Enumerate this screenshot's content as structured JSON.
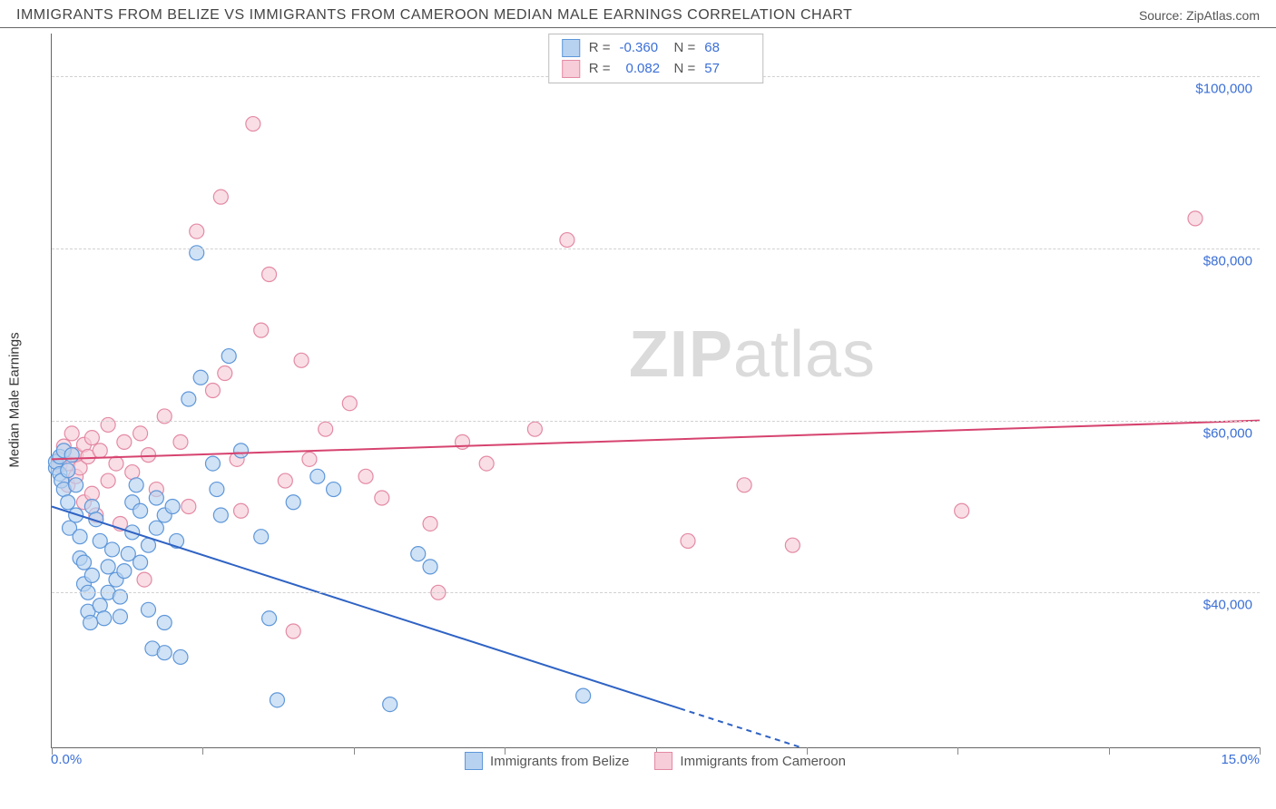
{
  "header": {
    "title": "IMMIGRANTS FROM BELIZE VS IMMIGRANTS FROM CAMEROON MEDIAN MALE EARNINGS CORRELATION CHART",
    "source_prefix": "Source: ",
    "source_name": "ZipAtlas.com"
  },
  "chart": {
    "type": "scatter",
    "y_axis_label": "Median Male Earnings",
    "x_min_label": "0.0%",
    "x_max_label": "15.0%",
    "xlim": [
      0,
      15
    ],
    "ylim": [
      22000,
      105000
    ],
    "y_gridlines": [
      40000,
      60000,
      80000,
      100000
    ],
    "y_tick_labels": [
      "$40,000",
      "$60,000",
      "$80,000",
      "$100,000"
    ],
    "x_ticks_pct": [
      0,
      12.5,
      25,
      37.5,
      50,
      62.5,
      75,
      87.5,
      100
    ],
    "grid_color": "#d0d0d0",
    "axis_color": "#666666",
    "background_color": "#ffffff",
    "tick_label_color": "#3b6fd6",
    "marker_radius": 8,
    "marker_stroke_width": 1.2,
    "line_width": 2,
    "watermark_text_bold": "ZIP",
    "watermark_text_rest": "atlas",
    "watermark_color": "#bfbfbf"
  },
  "series": {
    "belize": {
      "label": "Immigrants from Belize",
      "fill": "#b7d2f0",
      "stroke": "#5e97da",
      "line_color": "#2f63c4",
      "R_label": "R =",
      "R_value": "-0.360",
      "N_label": "N =",
      "N_value": "68",
      "regression": {
        "x1": 0,
        "y1": 50000,
        "x2": 9.3,
        "y2": 22000,
        "dash_after_x": 7.8
      },
      "points": [
        [
          0.05,
          54500
        ],
        [
          0.05,
          55200
        ],
        [
          0.1,
          53800
        ],
        [
          0.1,
          55800
        ],
        [
          0.12,
          53000
        ],
        [
          0.15,
          56500
        ],
        [
          0.15,
          52000
        ],
        [
          0.2,
          54200
        ],
        [
          0.2,
          50500
        ],
        [
          0.22,
          47500
        ],
        [
          0.25,
          56000
        ],
        [
          0.3,
          52500
        ],
        [
          0.3,
          49000
        ],
        [
          0.35,
          46500
        ],
        [
          0.35,
          44000
        ],
        [
          0.4,
          43500
        ],
        [
          0.4,
          41000
        ],
        [
          0.45,
          40000
        ],
        [
          0.45,
          37800
        ],
        [
          0.48,
          36500
        ],
        [
          0.5,
          42000
        ],
        [
          0.5,
          50000
        ],
        [
          0.55,
          48500
        ],
        [
          0.6,
          46000
        ],
        [
          0.6,
          38500
        ],
        [
          0.65,
          37000
        ],
        [
          0.7,
          43000
        ],
        [
          0.7,
          40000
        ],
        [
          0.75,
          45000
        ],
        [
          0.8,
          41500
        ],
        [
          0.85,
          39500
        ],
        [
          0.85,
          37200
        ],
        [
          0.9,
          42500
        ],
        [
          0.95,
          44500
        ],
        [
          1.0,
          47000
        ],
        [
          1.0,
          50500
        ],
        [
          1.05,
          52500
        ],
        [
          1.1,
          49500
        ],
        [
          1.1,
          43500
        ],
        [
          1.2,
          45500
        ],
        [
          1.2,
          38000
        ],
        [
          1.25,
          33500
        ],
        [
          1.3,
          51000
        ],
        [
          1.3,
          47500
        ],
        [
          1.4,
          49000
        ],
        [
          1.4,
          36500
        ],
        [
          1.4,
          33000
        ],
        [
          1.5,
          50000
        ],
        [
          1.55,
          46000
        ],
        [
          1.6,
          32500
        ],
        [
          1.7,
          62500
        ],
        [
          1.8,
          79500
        ],
        [
          1.85,
          65000
        ],
        [
          2.0,
          55000
        ],
        [
          2.05,
          52000
        ],
        [
          2.1,
          49000
        ],
        [
          2.2,
          67500
        ],
        [
          2.35,
          56500
        ],
        [
          2.6,
          46500
        ],
        [
          2.7,
          37000
        ],
        [
          2.8,
          27500
        ],
        [
          3.0,
          50500
        ],
        [
          3.3,
          53500
        ],
        [
          3.5,
          52000
        ],
        [
          4.2,
          27000
        ],
        [
          4.55,
          44500
        ],
        [
          4.7,
          43000
        ],
        [
          6.6,
          28000
        ]
      ]
    },
    "cameroon": {
      "label": "Immigrants from Cameroon",
      "fill": "#f6cdd8",
      "stroke": "#e48aa4",
      "line_color": "#d6436f",
      "R_label": "R =",
      "R_value": "0.082",
      "N_label": "N =",
      "N_value": "57",
      "regression": {
        "x1": 0,
        "y1": 55500,
        "x2": 15,
        "y2": 60000
      },
      "points": [
        [
          0.1,
          55500
        ],
        [
          0.1,
          54800
        ],
        [
          0.15,
          57000
        ],
        [
          0.2,
          55000
        ],
        [
          0.2,
          52500
        ],
        [
          0.25,
          58500
        ],
        [
          0.3,
          56000
        ],
        [
          0.3,
          53500
        ],
        [
          0.35,
          54500
        ],
        [
          0.4,
          57200
        ],
        [
          0.4,
          50500
        ],
        [
          0.45,
          55800
        ],
        [
          0.5,
          58000
        ],
        [
          0.5,
          51500
        ],
        [
          0.55,
          49000
        ],
        [
          0.6,
          56500
        ],
        [
          0.7,
          59500
        ],
        [
          0.7,
          53000
        ],
        [
          0.8,
          55000
        ],
        [
          0.85,
          48000
        ],
        [
          0.9,
          57500
        ],
        [
          1.0,
          54000
        ],
        [
          1.1,
          58500
        ],
        [
          1.15,
          41500
        ],
        [
          1.2,
          56000
        ],
        [
          1.3,
          52000
        ],
        [
          1.4,
          60500
        ],
        [
          1.6,
          57500
        ],
        [
          1.7,
          50000
        ],
        [
          1.8,
          82000
        ],
        [
          2.0,
          63500
        ],
        [
          2.1,
          86000
        ],
        [
          2.15,
          65500
        ],
        [
          2.3,
          55500
        ],
        [
          2.35,
          49500
        ],
        [
          2.5,
          94500
        ],
        [
          2.6,
          70500
        ],
        [
          2.7,
          77000
        ],
        [
          2.9,
          53000
        ],
        [
          3.0,
          35500
        ],
        [
          3.1,
          67000
        ],
        [
          3.2,
          55500
        ],
        [
          3.4,
          59000
        ],
        [
          3.7,
          62000
        ],
        [
          3.9,
          53500
        ],
        [
          4.1,
          51000
        ],
        [
          4.7,
          48000
        ],
        [
          4.8,
          40000
        ],
        [
          5.1,
          57500
        ],
        [
          5.4,
          55000
        ],
        [
          6.0,
          59000
        ],
        [
          6.4,
          81000
        ],
        [
          7.9,
          46000
        ],
        [
          8.6,
          52500
        ],
        [
          9.2,
          45500
        ],
        [
          11.3,
          49500
        ],
        [
          14.2,
          83500
        ]
      ]
    }
  }
}
